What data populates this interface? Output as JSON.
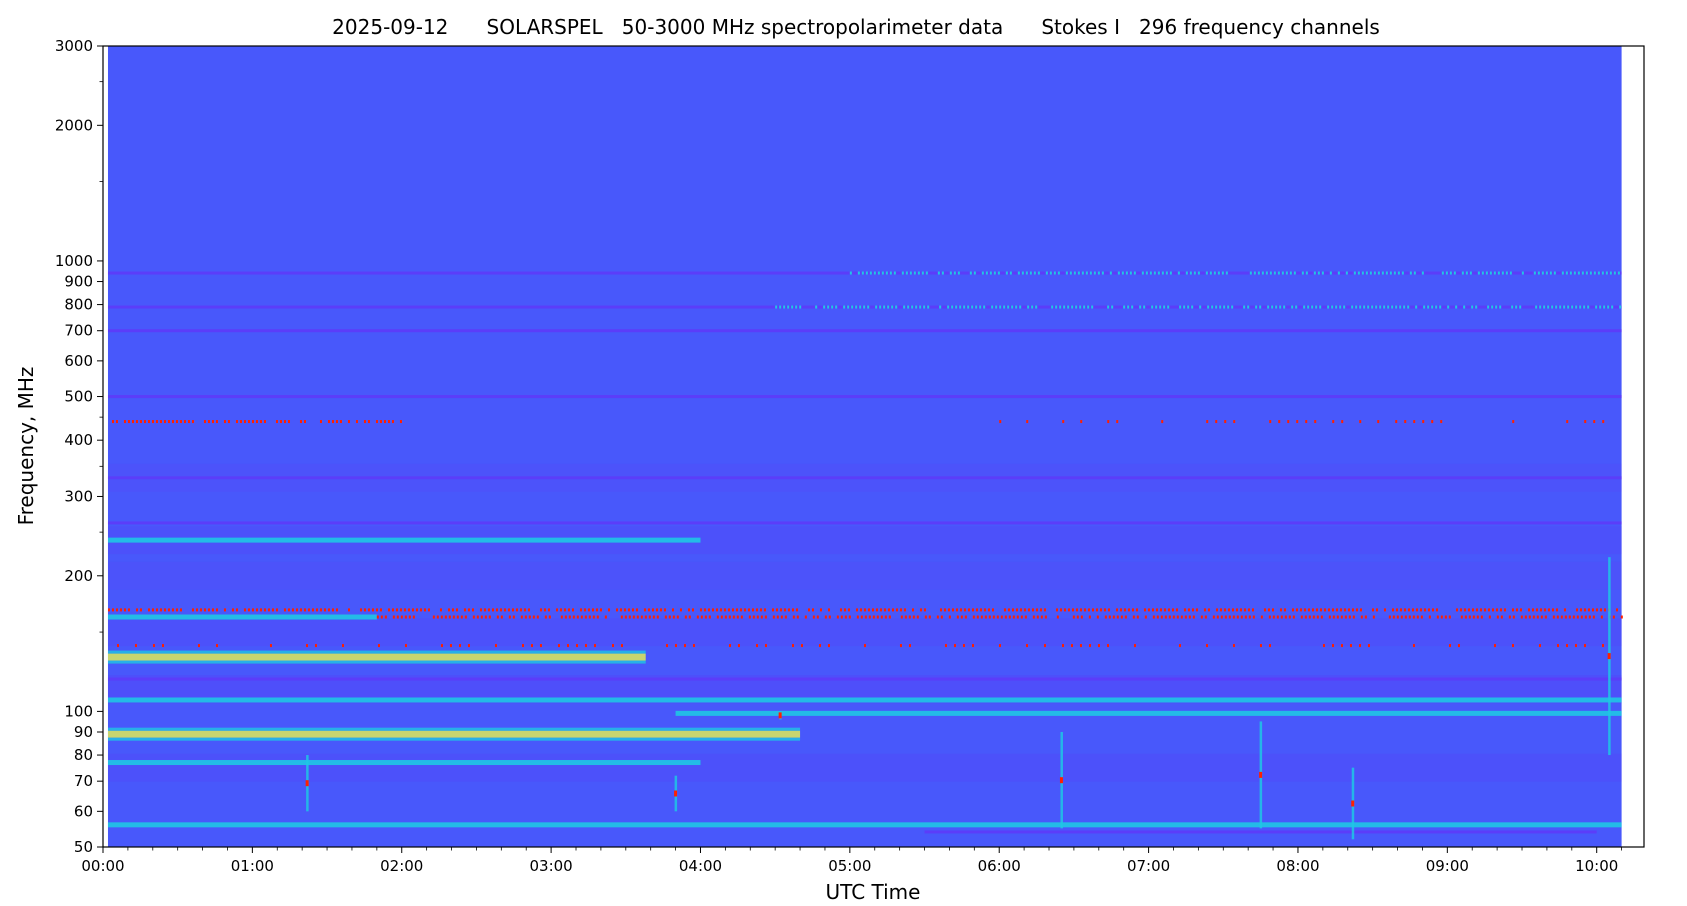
{
  "chart_data": {
    "type": "heatmap",
    "title": "2025-09-12      SOLARSPEL   50-3000 MHz spectropolarimeter data      Stokes I   296 frequency channels",
    "xlabel": "UTC Time",
    "ylabel": "Frequency, MHz",
    "x_scale": "linear",
    "y_scale": "log",
    "xlim": [
      "00:00",
      "10:19"
    ],
    "ylim": [
      50,
      3000
    ],
    "data_start": "00:02",
    "data_end": "10:10",
    "x_ticks": [
      "00:00",
      "01:00",
      "02:00",
      "03:00",
      "04:00",
      "05:00",
      "06:00",
      "07:00",
      "08:00",
      "09:00",
      "10:00"
    ],
    "y_ticks": [
      50,
      60,
      70,
      80,
      90,
      100,
      200,
      300,
      400,
      500,
      600,
      700,
      800,
      900,
      1000,
      2000,
      3000
    ],
    "y_tick_labels": [
      "50",
      "60",
      "70",
      "80",
      "90",
      "100",
      "200",
      "300",
      "400",
      "500",
      "600",
      "700",
      "800",
      "900",
      "1000",
      "2000",
      "3000"
    ],
    "y_minor_ticks": [
      150,
      250,
      350,
      450,
      1500,
      2500
    ],
    "colormap": "rainbow",
    "colors": {
      "background": "#4858fb",
      "low": "#5d3bf8",
      "mid": "#1fc7e4",
      "high_yellow": "#d6e35f",
      "high_red": "#ff2000"
    },
    "bands": [
      {
        "freq": 940,
        "start": "00:02",
        "end": "10:10",
        "level": "low"
      },
      {
        "freq": 940,
        "start": "05:00",
        "end": "10:10",
        "level": "mid",
        "pattern": "dotted"
      },
      {
        "freq": 790,
        "start": "00:02",
        "end": "10:10",
        "level": "low"
      },
      {
        "freq": 790,
        "start": "04:30",
        "end": "10:10",
        "level": "mid",
        "pattern": "dotted"
      },
      {
        "freq": 700,
        "start": "00:02",
        "end": "10:10",
        "level": "low"
      },
      {
        "freq": 500,
        "start": "00:02",
        "end": "10:10",
        "level": "low"
      },
      {
        "freq": 440,
        "start": "00:02",
        "end": "02:05",
        "level": "high_red",
        "pattern": "dotted"
      },
      {
        "freq": 440,
        "start": "06:00",
        "end": "10:10",
        "level": "high_red",
        "pattern": "sparse"
      },
      {
        "freq": 330,
        "start": "00:02",
        "end": "10:10",
        "level": "low"
      },
      {
        "freq": 262,
        "start": "00:02",
        "end": "10:10",
        "level": "low"
      },
      {
        "freq": 240,
        "start": "00:02",
        "end": "04:00",
        "level": "mid"
      },
      {
        "freq": 168,
        "start": "00:02",
        "end": "10:10",
        "level": "high_red",
        "pattern": "dotted"
      },
      {
        "freq": 162,
        "start": "00:02",
        "end": "01:50",
        "level": "mid"
      },
      {
        "freq": 162,
        "start": "01:50",
        "end": "10:10",
        "level": "high_red",
        "pattern": "dotted"
      },
      {
        "freq": 140,
        "start": "00:02",
        "end": "10:10",
        "level": "high_red",
        "pattern": "sparse"
      },
      {
        "freq": 132,
        "start": "00:02",
        "end": "03:38",
        "level": "high_yellow"
      },
      {
        "freq": 118,
        "start": "00:02",
        "end": "10:10",
        "level": "low"
      },
      {
        "freq": 106,
        "start": "00:02",
        "end": "10:10",
        "level": "mid"
      },
      {
        "freq": 99,
        "start": "03:50",
        "end": "10:10",
        "level": "mid"
      },
      {
        "freq": 89,
        "start": "00:02",
        "end": "04:40",
        "level": "high_yellow"
      },
      {
        "freq": 77,
        "start": "00:02",
        "end": "04:00",
        "level": "mid"
      },
      {
        "freq": 56,
        "start": "00:02",
        "end": "10:10",
        "level": "mid"
      },
      {
        "freq": 54,
        "start": "05:30",
        "end": "10:00",
        "level": "low"
      }
    ],
    "bursts": [
      {
        "time": "01:22",
        "freq_low": 60,
        "freq_high": 80
      },
      {
        "time": "03:50",
        "freq_low": 60,
        "freq_high": 72
      },
      {
        "time": "04:32",
        "freq_low": 96,
        "freq_high": 100
      },
      {
        "time": "06:25",
        "freq_low": 55,
        "freq_high": 90
      },
      {
        "time": "07:45",
        "freq_low": 55,
        "freq_high": 95
      },
      {
        "time": "08:22",
        "freq_low": 52,
        "freq_high": 75
      },
      {
        "time": "10:05",
        "freq_low": 80,
        "freq_high": 220
      }
    ]
  }
}
